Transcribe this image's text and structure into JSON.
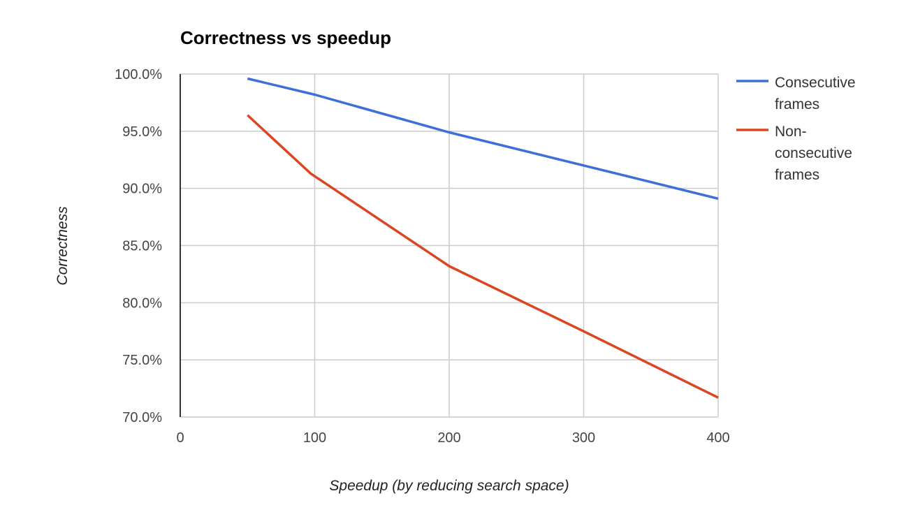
{
  "chart_data": {
    "type": "line",
    "title": "Correctness vs speedup",
    "xlabel": "Speedup (by reducing search space)",
    "ylabel": "Correctness",
    "xlim": [
      0,
      400
    ],
    "ylim": [
      70,
      100
    ],
    "x_ticks": [
      0,
      100,
      200,
      300,
      400
    ],
    "x_tick_labels": [
      "0",
      "100",
      "200",
      "300",
      "400"
    ],
    "y_ticks": [
      70,
      75,
      80,
      85,
      90,
      95,
      100
    ],
    "y_tick_labels": [
      "70.0%",
      "75.0%",
      "80.0%",
      "85.0%",
      "90.0%",
      "95.0%",
      "100.0%"
    ],
    "grid": true,
    "legend_position": "right",
    "series": [
      {
        "name": "Consecutive frames",
        "legend_lines": [
          "Consecutive",
          "frames"
        ],
        "color": "#3d6fd9",
        "x": [
          50,
          100,
          200,
          300,
          400
        ],
        "values": [
          99.6,
          98.2,
          94.9,
          92.0,
          89.1
        ]
      },
      {
        "name": "Non-consecutive frames",
        "legend_lines": [
          "Non-",
          "consecutive",
          "frames"
        ],
        "color": "#dc4520",
        "x": [
          50,
          97,
          200,
          300,
          400
        ],
        "values": [
          96.4,
          91.3,
          83.2,
          77.5,
          71.7
        ]
      }
    ]
  }
}
